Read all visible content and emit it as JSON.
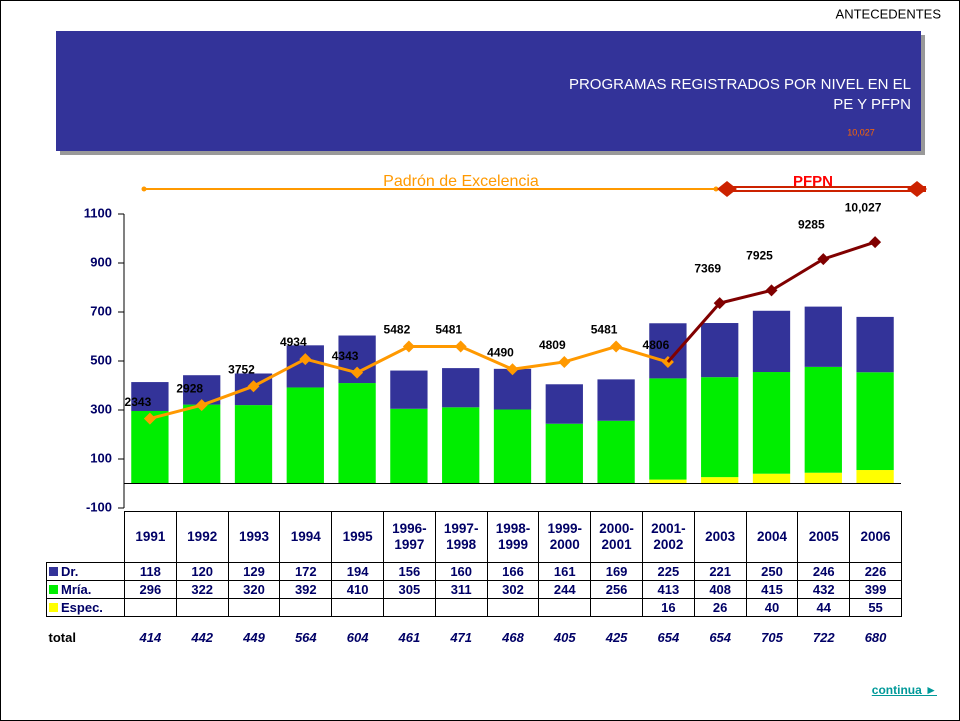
{
  "header": "ANTECEDENTES",
  "banner": {
    "lines": [
      "PROGRAMAS REGISTRADOS POR NIVEL EN EL",
      "PE Y  PFPN"
    ],
    "note": "10,027"
  },
  "link": "continua ►",
  "chart_data": {
    "type": "bar",
    "stacked": true,
    "categories": [
      "1991",
      "1992",
      "1993",
      "1994",
      "1995",
      "1996-1997",
      "1997-1998",
      "1998-1999",
      "1999-2000",
      "2000-2001",
      "2001-2002",
      "2003",
      "2004",
      "2005",
      "2006"
    ],
    "ylim": [
      -100,
      1100
    ],
    "yticks": [
      -100,
      100,
      300,
      500,
      700,
      900,
      1100
    ],
    "y2lim": [
      -1550,
      11250
    ],
    "series": [
      {
        "name": "Dr.",
        "type": "bar",
        "color": "#333399",
        "values": [
          118,
          120,
          129,
          172,
          194,
          156,
          160,
          166,
          161,
          169,
          225,
          221,
          250,
          246,
          226
        ]
      },
      {
        "name": "Mría.",
        "type": "bar",
        "color": "#00ee00",
        "values": [
          296,
          322,
          320,
          392,
          410,
          305,
          311,
          302,
          244,
          256,
          413,
          408,
          415,
          432,
          399
        ]
      },
      {
        "name": "Espec.",
        "type": "bar",
        "color": "#ffff00",
        "values": [
          null,
          null,
          null,
          null,
          null,
          null,
          null,
          null,
          null,
          null,
          16,
          26,
          40,
          44,
          55
        ]
      },
      {
        "name": "Padrón de Excelencia",
        "type": "line",
        "axis": "y2",
        "color": "#ff9900",
        "values": [
          2343,
          2928,
          3752,
          4934,
          4343,
          5482,
          5481,
          4490,
          4809,
          5481,
          4806,
          null,
          null,
          null,
          null
        ]
      },
      {
        "name": "PFPN",
        "type": "line",
        "axis": "y2",
        "color": "#800000",
        "values": [
          null,
          null,
          null,
          null,
          null,
          null,
          null,
          null,
          null,
          null,
          null,
          7369,
          7925,
          9285,
          10027
        ],
        "value_labels": [
          null,
          null,
          null,
          null,
          null,
          null,
          null,
          null,
          null,
          null,
          null,
          "7369",
          "7925",
          "9285",
          "10,027"
        ]
      }
    ],
    "totals": {
      "label": "total",
      "values": [
        414,
        442,
        449,
        564,
        604,
        461,
        471,
        468,
        405,
        425,
        654,
        654,
        705,
        722,
        680
      ]
    }
  }
}
